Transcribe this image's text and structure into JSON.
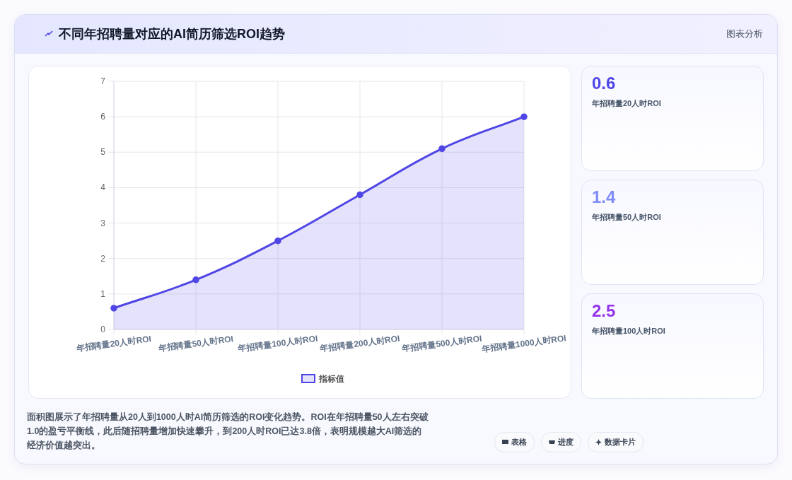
{
  "chart_data": [
    {
      "type": "area",
      "title": "不同年招聘量对应的AI简历筛选ROI趋势",
      "categories": [
        "年招聘量20人时ROI",
        "年招聘量50人时ROI",
        "年招聘量100人时ROI",
        "年招聘量200人时ROI",
        "年招聘量500人时ROI",
        "年招聘量1000人时ROI"
      ],
      "series": [
        {
          "name": "指标值",
          "color": "#4f46e5",
          "values": [
            0.6,
            1.4,
            2.5,
            3.8,
            5.1,
            6.0
          ]
        }
      ],
      "ylim": [
        0,
        7
      ],
      "yticks": [
        0,
        1,
        2,
        3,
        4,
        5,
        6,
        7
      ],
      "grid": true,
      "legend": "bottom",
      "marker": "circle",
      "annotations": [
        "图表分析",
        "面积图展示了年招聘量从20人到1000人时AI简历筛选的ROI变化趋势。ROI在年招聘量50人左右突破1.0的盈亏平衡线，此后随招聘量增加快速攀升，到200人时ROI已达3.8倍，表明规模越大AI筛选的经济价值越突出。",
        "表格",
        "进度",
        "数据卡片"
      ]
    },
    {
      "type": "other",
      "annotations": [
        "0.6",
        "年招聘量20人时ROI",
        "1.4",
        "年招聘量50人时ROI",
        "2.5",
        "年招聘量100人时ROI"
      ]
    }
  ]
}
